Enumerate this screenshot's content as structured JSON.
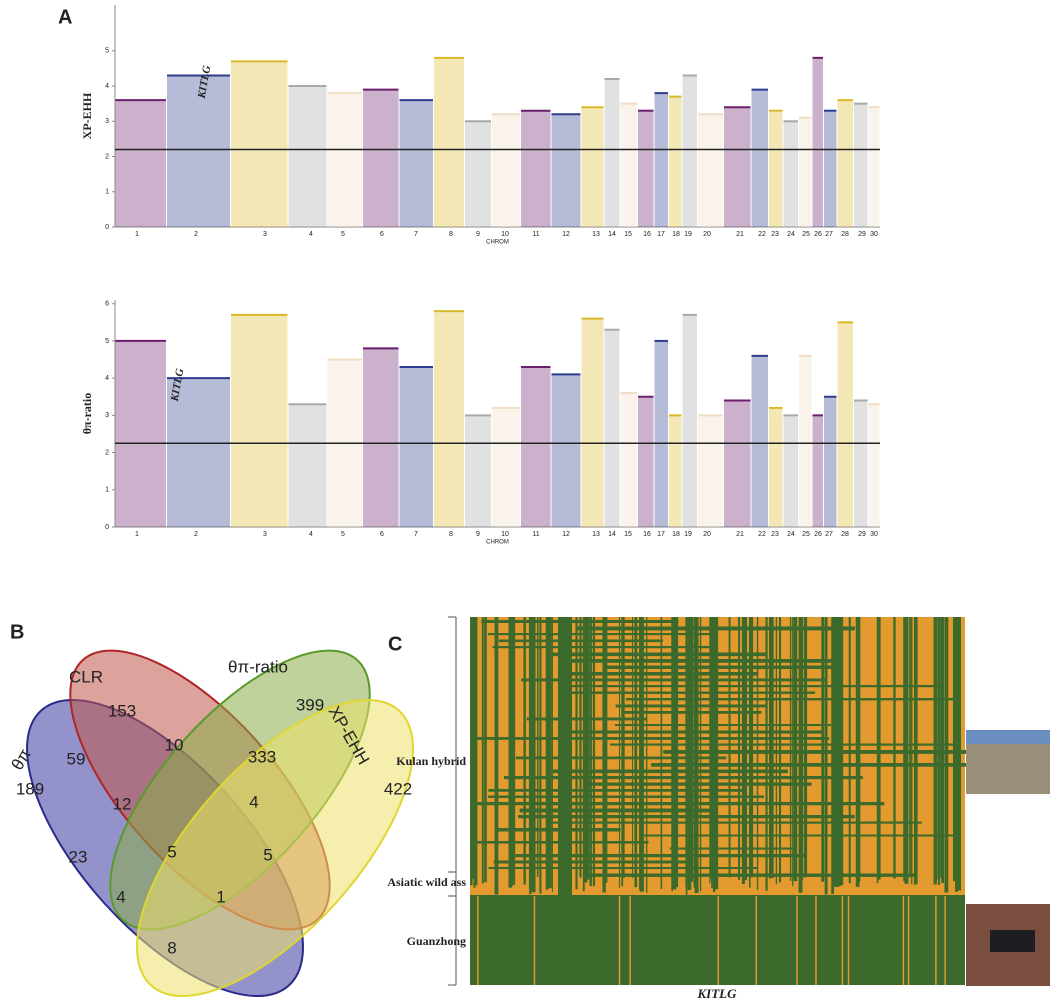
{
  "panel_labels": [
    "A",
    "B",
    "C"
  ],
  "chart_data": [
    {
      "type": "manhattan",
      "ylabel": "XP-EHH",
      "xlabel": "CHROM",
      "categories": [
        "1",
        "2",
        "3",
        "4",
        "5",
        "6",
        "7",
        "8",
        "9",
        "10",
        "11",
        "12",
        "13",
        "14",
        "15",
        "16",
        "17",
        "18",
        "19",
        "20",
        "21",
        "22",
        "23",
        "24",
        "25",
        "26",
        "27",
        "28",
        "29",
        "30"
      ],
      "values": [
        3.6,
        4.3,
        4.7,
        4.0,
        3.8,
        3.9,
        3.6,
        4.8,
        3.0,
        3.2,
        3.3,
        3.2,
        3.4,
        4.2,
        3.5,
        3.3,
        3.8,
        3.7,
        4.3,
        3.2,
        3.4,
        3.9,
        3.3,
        3.0,
        3.1,
        4.8,
        3.3,
        3.6,
        3.5,
        3.4
      ],
      "colors": [
        "#6b1f6e",
        "#2e3d8f",
        "#d9b92a",
        "#a9a9a9",
        "#f1dcc6"
      ],
      "ylim": [
        0,
        6.3
      ],
      "yticks": [
        0,
        1,
        2,
        3,
        4,
        5
      ],
      "threshold": 2.2,
      "annotation": "KITLG"
    },
    {
      "type": "manhattan",
      "ylabel": "θπ-ratio",
      "xlabel": "CHROM",
      "categories": [
        "1",
        "2",
        "3",
        "4",
        "5",
        "6",
        "7",
        "8",
        "9",
        "10",
        "11",
        "12",
        "13",
        "14",
        "15",
        "16",
        "17",
        "18",
        "19",
        "20",
        "21",
        "22",
        "23",
        "24",
        "25",
        "26",
        "27",
        "28",
        "29",
        "30"
      ],
      "values": [
        5.0,
        4.0,
        5.7,
        3.3,
        4.5,
        4.8,
        4.3,
        5.8,
        3.0,
        3.2,
        4.3,
        4.1,
        5.6,
        5.3,
        3.6,
        3.5,
        5.0,
        3.0,
        5.7,
        3.0,
        3.4,
        4.6,
        3.2,
        3.0,
        4.6,
        3.0,
        3.5,
        5.5,
        3.4,
        3.3
      ],
      "colors": [
        "#6b1f6e",
        "#2e3d8f",
        "#d9b92a",
        "#a9a9a9",
        "#f1dcc6"
      ],
      "ylim": [
        0,
        6.1
      ],
      "yticks": [
        0,
        1,
        2,
        3,
        4,
        5,
        6
      ],
      "threshold": 2.25,
      "annotation": "KITLG"
    }
  ],
  "venn": {
    "sets": [
      "CLR",
      "θπ-ratio",
      "XP-EHH",
      "θπ"
    ],
    "regions": [
      "153",
      "399",
      "422",
      "189",
      "59",
      "10",
      "333",
      "12",
      "4",
      "23",
      "5",
      "5",
      "4",
      "1",
      "8"
    ]
  },
  "haplotype": {
    "groups": [
      "Kulan hybrid",
      "Asiatic wild ass",
      "Guanzhong"
    ],
    "gene": "KITLG"
  }
}
